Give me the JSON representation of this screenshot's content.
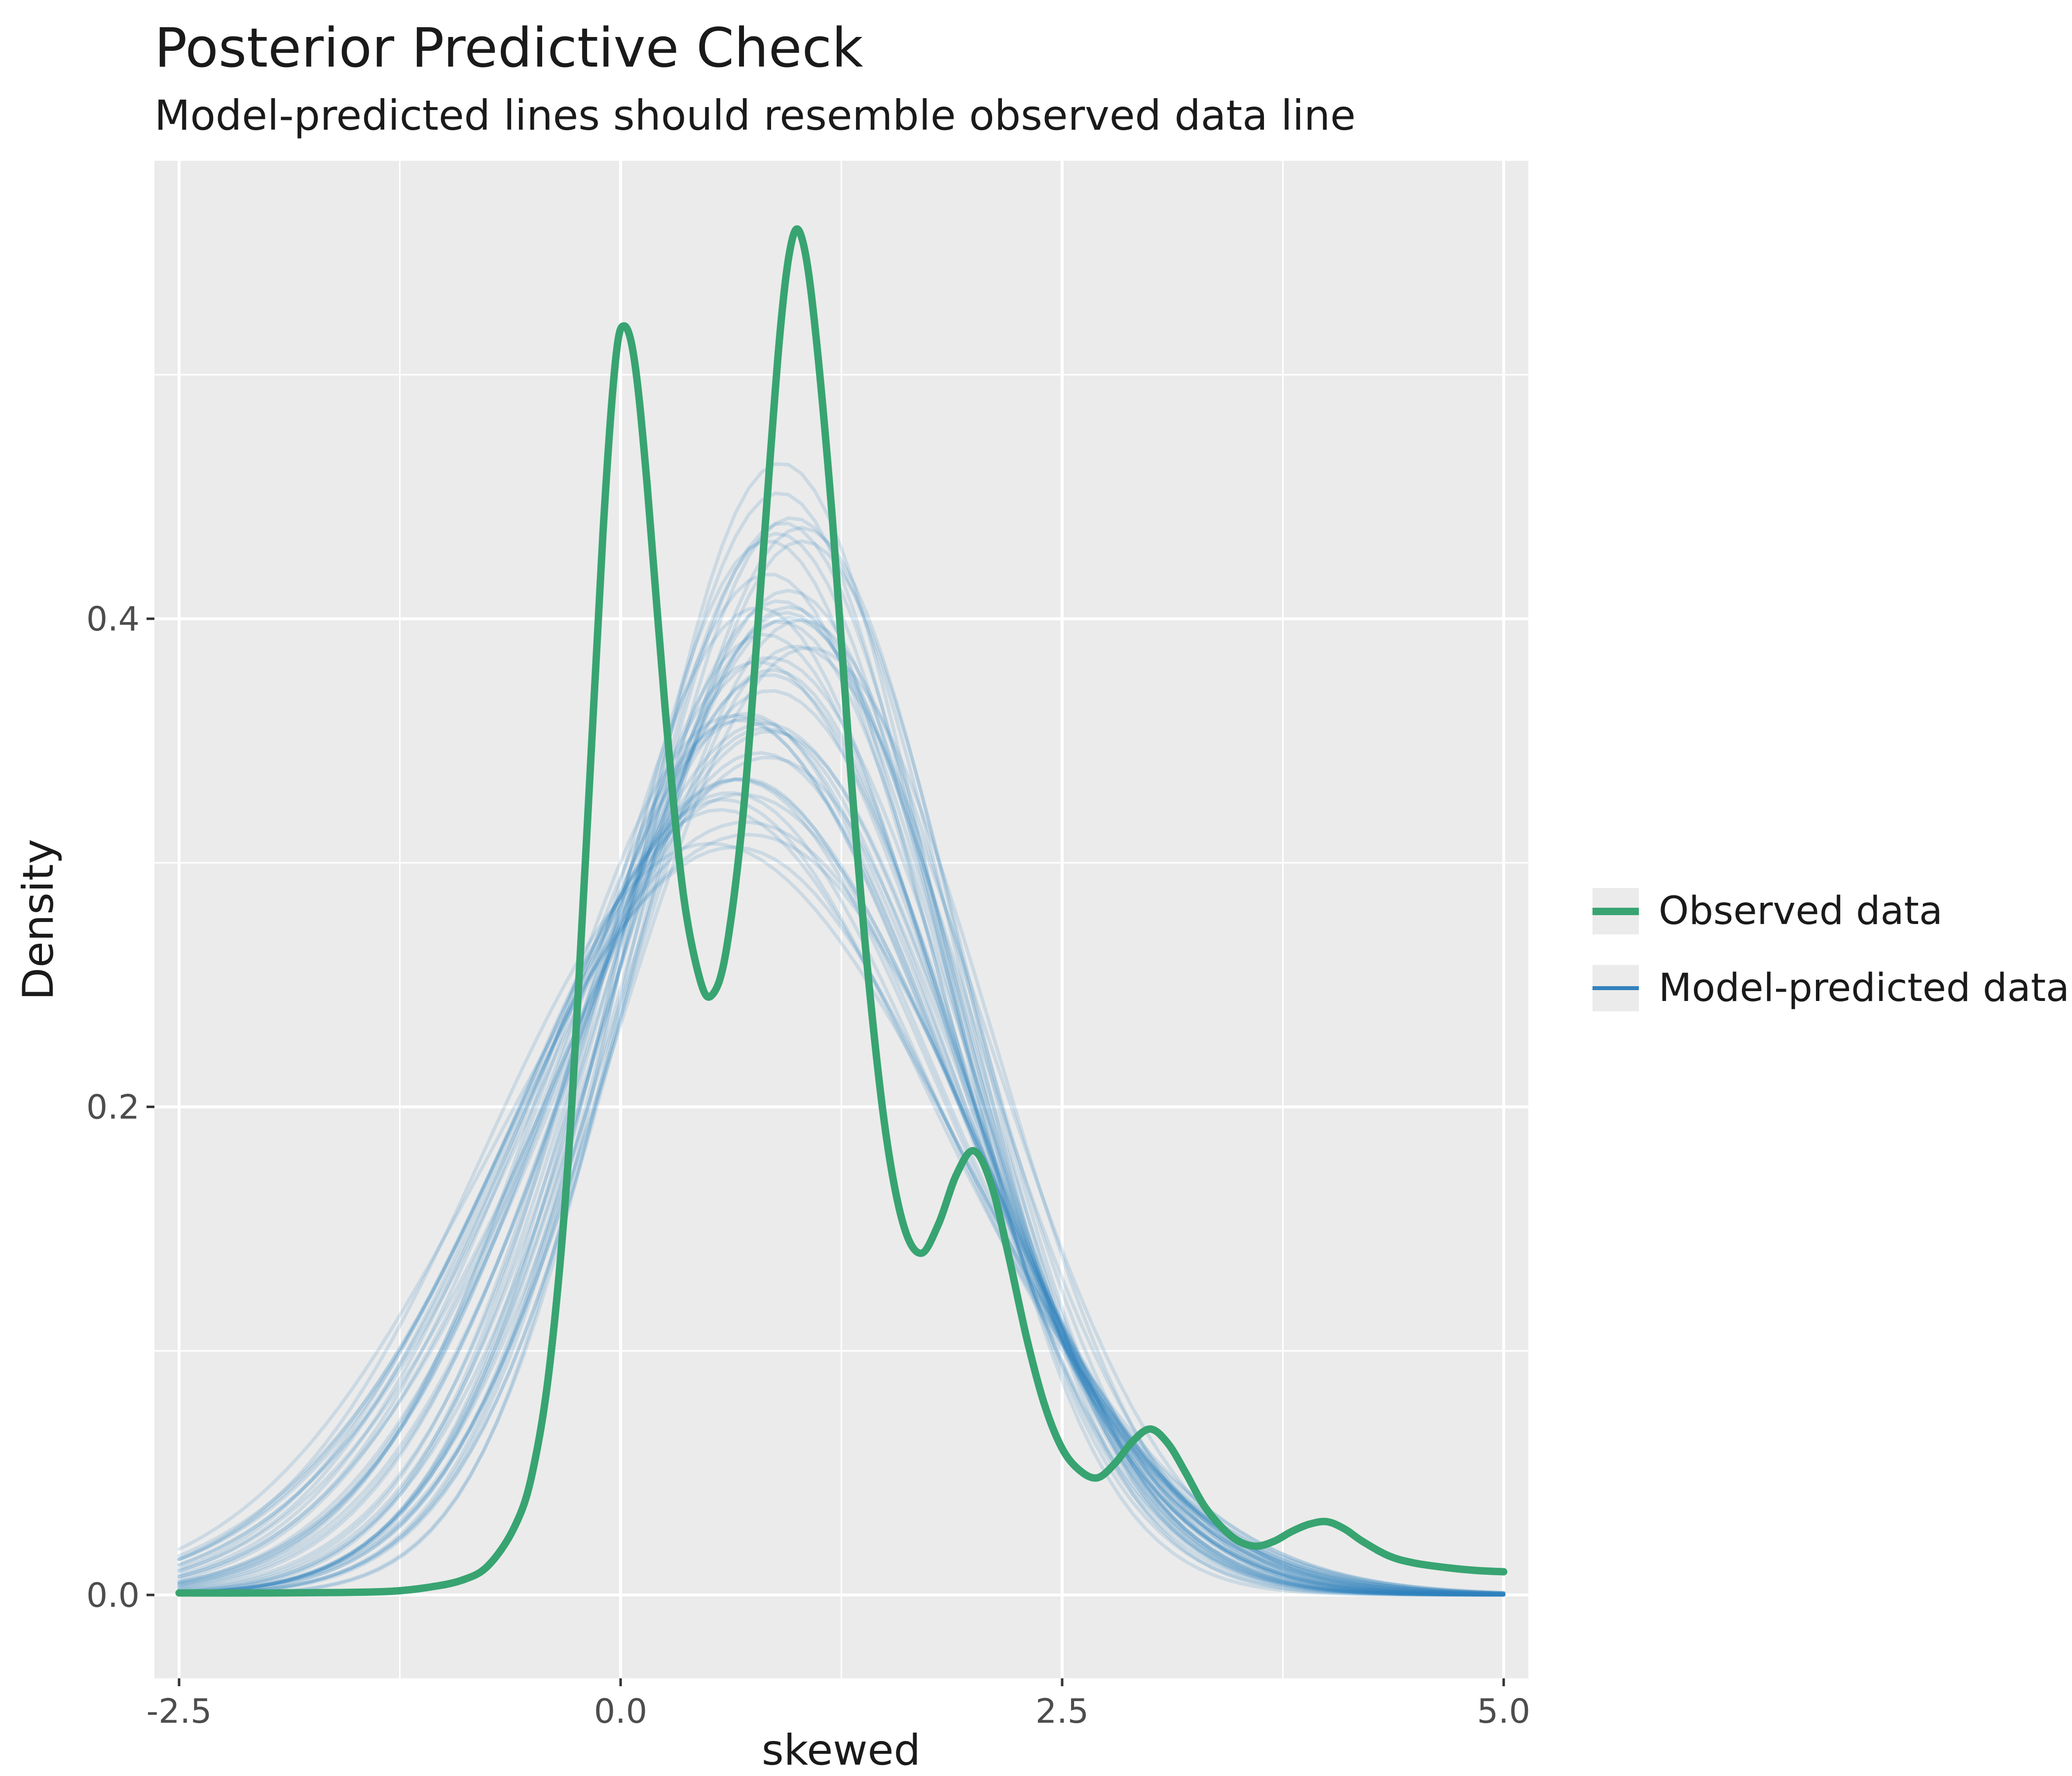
{
  "header": {
    "title": "Posterior Predictive Check",
    "subtitle": "Model-predicted lines should resemble observed data line"
  },
  "axes": {
    "x": {
      "label": "skewed",
      "ticks": [
        "-2.5",
        "0.0",
        "2.5",
        "5.0"
      ],
      "tick_values": [
        -2.5,
        0,
        2.5,
        5
      ],
      "minor_values": [
        -1.25,
        1.25,
        3.75
      ],
      "range": [
        -2.5,
        5.0
      ]
    },
    "y": {
      "label": "Density",
      "ticks": [
        "0.0",
        "0.2",
        "0.4"
      ],
      "tick_values": [
        0,
        0.2,
        0.4
      ],
      "minor_values": [
        0.1,
        0.3,
        0.5
      ],
      "range": [
        0,
        0.588
      ]
    }
  },
  "legend": {
    "items": [
      {
        "label": "Observed data",
        "color": "#38A471",
        "line_width": 15
      },
      {
        "label": "Model-predicted data",
        "color": "#3182BD",
        "line_width": 8
      }
    ]
  },
  "colors": {
    "panel_bg": "#EBEBEB",
    "grid": "#FFFFFF",
    "observed": "#38A471",
    "predicted": "#3182BD",
    "predicted_opacity": 0.17,
    "tick_text": "#4D4D4D",
    "tick_mark": "#333333",
    "text": "#1A1A1A",
    "legend_key_bg": "#EBEBEB"
  },
  "chart_data": {
    "type": "line",
    "title": "Posterior Predictive Check",
    "subtitle": "Model-predicted lines should resemble observed data line",
    "xlabel": "skewed",
    "ylabel": "Density",
    "xlim": [
      -2.5,
      5.0
    ],
    "ylim": [
      0,
      0.588
    ],
    "grid": true,
    "legend_position": "right",
    "observed": {
      "name": "Observed data",
      "points": [
        [
          -2.5,
          0.0008
        ],
        [
          -2.0,
          0.0008
        ],
        [
          -1.6,
          0.001
        ],
        [
          -1.3,
          0.0015
        ],
        [
          -1.1,
          0.003
        ],
        [
          -0.9,
          0.006
        ],
        [
          -0.75,
          0.012
        ],
        [
          -0.6,
          0.028
        ],
        [
          -0.5,
          0.05
        ],
        [
          -0.4,
          0.095
        ],
        [
          -0.3,
          0.175
        ],
        [
          -0.2,
          0.3
        ],
        [
          -0.1,
          0.435
        ],
        [
          -0.03,
          0.505
        ],
        [
          0.02,
          0.52
        ],
        [
          0.08,
          0.505
        ],
        [
          0.15,
          0.455
        ],
        [
          0.25,
          0.365
        ],
        [
          0.35,
          0.29
        ],
        [
          0.45,
          0.252
        ],
        [
          0.52,
          0.246
        ],
        [
          0.6,
          0.265
        ],
        [
          0.7,
          0.325
        ],
        [
          0.8,
          0.42
        ],
        [
          0.9,
          0.515
        ],
        [
          0.97,
          0.555
        ],
        [
          1.03,
          0.555
        ],
        [
          1.1,
          0.52
        ],
        [
          1.2,
          0.44
        ],
        [
          1.3,
          0.34
        ],
        [
          1.4,
          0.255
        ],
        [
          1.5,
          0.19
        ],
        [
          1.6,
          0.152
        ],
        [
          1.7,
          0.14
        ],
        [
          1.8,
          0.152
        ],
        [
          1.9,
          0.172
        ],
        [
          2.0,
          0.182
        ],
        [
          2.1,
          0.168
        ],
        [
          2.2,
          0.138
        ],
        [
          2.3,
          0.105
        ],
        [
          2.4,
          0.078
        ],
        [
          2.5,
          0.06
        ],
        [
          2.6,
          0.051
        ],
        [
          2.7,
          0.048
        ],
        [
          2.8,
          0.054
        ],
        [
          2.9,
          0.063
        ],
        [
          3.0,
          0.068
        ],
        [
          3.1,
          0.062
        ],
        [
          3.2,
          0.05
        ],
        [
          3.3,
          0.037
        ],
        [
          3.4,
          0.028
        ],
        [
          3.5,
          0.022
        ],
        [
          3.6,
          0.02
        ],
        [
          3.7,
          0.022
        ],
        [
          3.8,
          0.026
        ],
        [
          3.9,
          0.029
        ],
        [
          4.0,
          0.03
        ],
        [
          4.1,
          0.027
        ],
        [
          4.2,
          0.022
        ],
        [
          4.35,
          0.016
        ],
        [
          4.5,
          0.013
        ],
        [
          4.7,
          0.011
        ],
        [
          4.85,
          0.01
        ],
        [
          5.0,
          0.0095
        ]
      ]
    },
    "predicted": {
      "name": "Model-predicted data",
      "count": 45,
      "model": "gaussian_with_wobble",
      "params_format": [
        "mean",
        "sd",
        "wobble",
        "phase"
      ],
      "params": [
        [
          0.62,
          1.25,
          0.03,
          0.5
        ],
        [
          0.95,
          0.84,
          0.04,
          2.1
        ],
        [
          0.78,
          1.1,
          0.02,
          4.0
        ],
        [
          1.02,
          1.0,
          0.05,
          1.2
        ],
        [
          0.7,
          1.18,
          0.03,
          3.3
        ],
        [
          0.88,
          0.95,
          0.04,
          0.8
        ],
        [
          0.58,
          1.3,
          0.02,
          5.1
        ],
        [
          0.99,
          0.86,
          0.05,
          2.7
        ],
        [
          0.83,
          0.98,
          0.03,
          1.9
        ],
        [
          0.74,
          1.15,
          0.04,
          4.6
        ],
        [
          0.91,
          0.9,
          0.02,
          0.3
        ],
        [
          0.67,
          1.22,
          0.05,
          3.8
        ],
        [
          1.05,
          1.02,
          0.03,
          1.5
        ],
        [
          0.8,
          1.08,
          0.04,
          5.5
        ],
        [
          0.86,
          0.94,
          0.02,
          2.4
        ],
        [
          0.63,
          1.28,
          0.05,
          0.9
        ],
        [
          0.97,
          0.99,
          0.03,
          4.2
        ],
        [
          0.76,
          1.12,
          0.04,
          1.7
        ],
        [
          0.9,
          0.96,
          0.02,
          3.0
        ],
        [
          0.71,
          1.2,
          0.05,
          5.8
        ],
        [
          0.84,
          1.04,
          0.03,
          0.6
        ],
        [
          0.6,
          1.26,
          0.04,
          2.9
        ],
        [
          1.0,
          0.93,
          0.02,
          4.8
        ],
        [
          0.79,
          1.14,
          0.05,
          1.1
        ],
        [
          0.93,
          0.97,
          0.03,
          3.5
        ],
        [
          0.68,
          1.24,
          0.04,
          0.2
        ],
        [
          0.87,
          1.01,
          0.02,
          5.2
        ],
        [
          0.75,
          1.09,
          0.05,
          2.2
        ],
        [
          0.98,
          0.91,
          0.03,
          4.4
        ],
        [
          0.65,
          1.27,
          0.04,
          1.4
        ],
        [
          0.82,
          1.06,
          0.02,
          3.9
        ],
        [
          0.94,
          0.95,
          0.05,
          0.7
        ],
        [
          0.72,
          1.17,
          0.03,
          2.6
        ],
        [
          0.89,
          1.0,
          0.04,
          5.0
        ],
        [
          0.77,
          1.11,
          0.02,
          1.8
        ],
        [
          1.03,
          0.98,
          0.05,
          3.2
        ],
        [
          0.66,
          1.23,
          0.03,
          0.4
        ],
        [
          0.85,
          1.03,
          0.04,
          2.0
        ],
        [
          0.92,
          0.96,
          0.02,
          4.1
        ],
        [
          0.73,
          1.16,
          0.05,
          5.6
        ],
        [
          0.96,
          0.92,
          0.03,
          1.0
        ],
        [
          0.69,
          1.21,
          0.04,
          3.6
        ],
        [
          0.81,
          1.07,
          0.02,
          5.4
        ],
        [
          0.88,
          0.99,
          0.05,
          2.8
        ],
        [
          0.78,
          1.13,
          0.03,
          4.9
        ]
      ]
    }
  }
}
